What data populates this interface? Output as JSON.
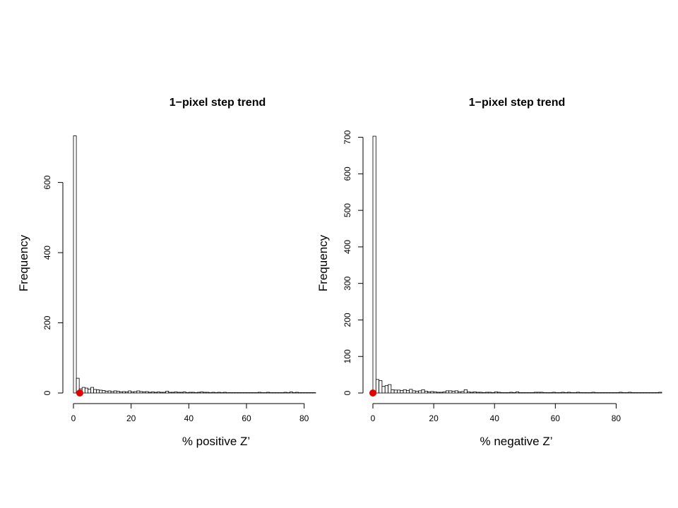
{
  "colors": {
    "bar_fill": "#ffffff",
    "bar_stroke": "#000000",
    "marker": "#e00000"
  },
  "chart_data": [
    {
      "type": "bar",
      "title": "1−pixel step trend",
      "xlabel": "% positive Z’",
      "ylabel": "Frequency",
      "xlim": [
        0,
        84
      ],
      "ylim": [
        0,
        740
      ],
      "x_ticks": [
        0,
        20,
        40,
        60,
        80
      ],
      "y_ticks": [
        0,
        200,
        400,
        600
      ],
      "bin_width": 1,
      "bins": [
        [
          0,
          733
        ],
        [
          1,
          42
        ],
        [
          2,
          12
        ],
        [
          3,
          16
        ],
        [
          4,
          14
        ],
        [
          5,
          11
        ],
        [
          6,
          16
        ],
        [
          7,
          10
        ],
        [
          8,
          9
        ],
        [
          9,
          8
        ],
        [
          10,
          7
        ],
        [
          11,
          5
        ],
        [
          12,
          6
        ],
        [
          13,
          4
        ],
        [
          14,
          6
        ],
        [
          15,
          5
        ],
        [
          16,
          3
        ],
        [
          17,
          4
        ],
        [
          18,
          3
        ],
        [
          19,
          6
        ],
        [
          20,
          3
        ],
        [
          21,
          4
        ],
        [
          22,
          6
        ],
        [
          23,
          4
        ],
        [
          24,
          3
        ],
        [
          25,
          4
        ],
        [
          26,
          2
        ],
        [
          27,
          3
        ],
        [
          28,
          2
        ],
        [
          29,
          3
        ],
        [
          30,
          2
        ],
        [
          31,
          2
        ],
        [
          32,
          5
        ],
        [
          33,
          2
        ],
        [
          34,
          2
        ],
        [
          35,
          3
        ],
        [
          36,
          2
        ],
        [
          37,
          2
        ],
        [
          38,
          3
        ],
        [
          39,
          1
        ],
        [
          40,
          2
        ],
        [
          41,
          2
        ],
        [
          42,
          1
        ],
        [
          43,
          2
        ],
        [
          44,
          3
        ],
        [
          45,
          2
        ],
        [
          46,
          2
        ],
        [
          47,
          1
        ],
        [
          48,
          2
        ],
        [
          49,
          1
        ],
        [
          50,
          2
        ],
        [
          51,
          1
        ],
        [
          52,
          2
        ],
        [
          53,
          1
        ],
        [
          54,
          1
        ],
        [
          55,
          1
        ],
        [
          56,
          1
        ],
        [
          57,
          1
        ],
        [
          58,
          1
        ],
        [
          59,
          1
        ],
        [
          60,
          1
        ],
        [
          61,
          1
        ],
        [
          62,
          1
        ],
        [
          63,
          1
        ],
        [
          64,
          2
        ],
        [
          65,
          1
        ],
        [
          66,
          1
        ],
        [
          67,
          2
        ],
        [
          68,
          1
        ],
        [
          69,
          1
        ],
        [
          70,
          1
        ],
        [
          71,
          1
        ],
        [
          72,
          1
        ],
        [
          73,
          2
        ],
        [
          74,
          1
        ],
        [
          75,
          3
        ],
        [
          76,
          1
        ],
        [
          77,
          2
        ],
        [
          78,
          1
        ],
        [
          79,
          1
        ],
        [
          80,
          1
        ],
        [
          81,
          1
        ],
        [
          82,
          1
        ],
        [
          83,
          1
        ]
      ],
      "marker": {
        "x": 2.2,
        "y": 0
      }
    },
    {
      "type": "bar",
      "title": "1−pixel step trend",
      "xlabel": "% negative Z’",
      "ylabel": "Frequency",
      "xlim": [
        0,
        95
      ],
      "ylim": [
        0,
        705
      ],
      "x_ticks": [
        0,
        20,
        40,
        60,
        80
      ],
      "y_ticks": [
        0,
        100,
        200,
        300,
        400,
        500,
        600,
        700
      ],
      "bin_width": 1,
      "bins": [
        [
          0,
          703
        ],
        [
          1,
          37
        ],
        [
          2,
          34
        ],
        [
          3,
          18
        ],
        [
          4,
          20
        ],
        [
          5,
          23
        ],
        [
          6,
          9
        ],
        [
          7,
          8
        ],
        [
          8,
          8
        ],
        [
          9,
          7
        ],
        [
          10,
          9
        ],
        [
          11,
          7
        ],
        [
          12,
          10
        ],
        [
          13,
          6
        ],
        [
          14,
          5
        ],
        [
          15,
          6
        ],
        [
          16,
          9
        ],
        [
          17,
          5
        ],
        [
          18,
          3
        ],
        [
          19,
          4
        ],
        [
          20,
          3
        ],
        [
          21,
          2
        ],
        [
          22,
          2
        ],
        [
          23,
          3
        ],
        [
          24,
          6
        ],
        [
          25,
          6
        ],
        [
          26,
          5
        ],
        [
          27,
          6
        ],
        [
          28,
          3
        ],
        [
          29,
          4
        ],
        [
          30,
          9
        ],
        [
          31,
          3
        ],
        [
          32,
          2
        ],
        [
          33,
          3
        ],
        [
          34,
          2
        ],
        [
          35,
          2
        ],
        [
          36,
          1
        ],
        [
          37,
          2
        ],
        [
          38,
          2
        ],
        [
          39,
          1
        ],
        [
          40,
          3
        ],
        [
          41,
          2
        ],
        [
          42,
          1
        ],
        [
          43,
          1
        ],
        [
          44,
          1
        ],
        [
          45,
          2
        ],
        [
          46,
          1
        ],
        [
          47,
          3
        ],
        [
          48,
          1
        ],
        [
          49,
          1
        ],
        [
          50,
          1
        ],
        [
          51,
          1
        ],
        [
          52,
          1
        ],
        [
          53,
          2
        ],
        [
          54,
          2
        ],
        [
          55,
          2
        ],
        [
          56,
          1
        ],
        [
          57,
          1
        ],
        [
          58,
          1
        ],
        [
          59,
          2
        ],
        [
          60,
          1
        ],
        [
          61,
          1
        ],
        [
          62,
          2
        ],
        [
          63,
          1
        ],
        [
          64,
          2
        ],
        [
          65,
          1
        ],
        [
          66,
          1
        ],
        [
          67,
          2
        ],
        [
          68,
          1
        ],
        [
          69,
          1
        ],
        [
          70,
          1
        ],
        [
          71,
          1
        ],
        [
          72,
          2
        ],
        [
          73,
          1
        ],
        [
          74,
          1
        ],
        [
          75,
          1
        ],
        [
          76,
          1
        ],
        [
          77,
          1
        ],
        [
          78,
          1
        ],
        [
          79,
          1
        ],
        [
          80,
          1
        ],
        [
          81,
          2
        ],
        [
          82,
          1
        ],
        [
          83,
          1
        ],
        [
          84,
          2
        ],
        [
          85,
          1
        ],
        [
          86,
          1
        ],
        [
          87,
          1
        ],
        [
          88,
          1
        ],
        [
          89,
          1
        ],
        [
          90,
          1
        ],
        [
          91,
          1
        ],
        [
          92,
          1
        ],
        [
          93,
          1
        ],
        [
          94,
          2
        ]
      ],
      "marker": {
        "x": 0,
        "y": 0
      }
    }
  ]
}
